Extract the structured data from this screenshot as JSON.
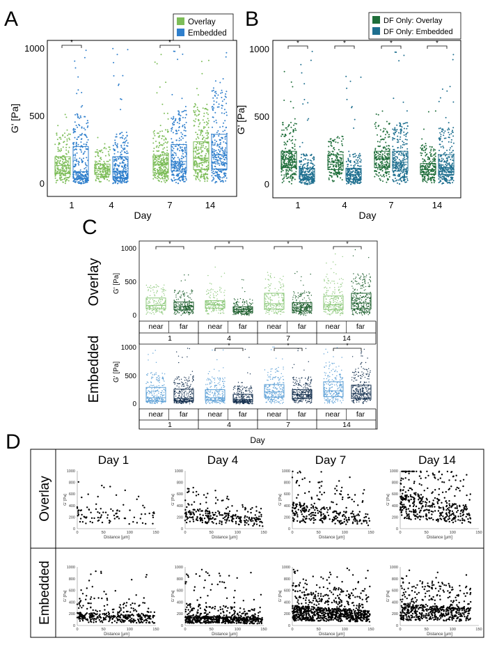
{
  "panel_letters": {
    "a": "A",
    "b": "B",
    "c": "C",
    "d": "D"
  },
  "colors": {
    "overlay": "#7dbd59",
    "embedded": "#2f7fcc",
    "df_overlay": "#1f6e3a",
    "df_embedded": "#1e6f8f",
    "c_near_overlay": "#8cc87a",
    "c_far_overlay": "#1a5c2a",
    "c_near_embedded": "#5b9fd6",
    "c_far_embedded": "#15304f",
    "scatter_dot": "#000000"
  },
  "chart_data": [
    {
      "id": "A",
      "type": "scatter",
      "title": "",
      "xlabel": "Day",
      "ylabel": "G' [Pa]",
      "ylim": [
        0,
        1000
      ],
      "yticks": [
        "0",
        "500",
        "1000"
      ],
      "categories": [
        "1",
        "4",
        "7",
        "14"
      ],
      "legend": [
        {
          "name": "Overlay",
          "color_key": "overlay"
        },
        {
          "name": "Embedded",
          "color_key": "embedded"
        }
      ],
      "legend_position": "top-right",
      "series": [
        {
          "name": "Overlay",
          "color_key": "overlay",
          "boxes": [
            {
              "q1": 75,
              "median": 135,
              "q3": 200,
              "max": 600
            },
            {
              "q1": 70,
              "median": 110,
              "q3": 145,
              "max": 380
            },
            {
              "q1": 80,
              "median": 145,
              "q3": 210,
              "max": 1000
            },
            {
              "q1": 105,
              "median": 190,
              "q3": 310,
              "max": 1000
            }
          ]
        },
        {
          "name": "Embedded",
          "color_key": "embedded",
          "boxes": [
            {
              "q1": 40,
              "median": 90,
              "q3": 275,
              "max": 1000
            },
            {
              "q1": 45,
              "median": 95,
              "q3": 200,
              "max": 1000
            },
            {
              "q1": 95,
              "median": 165,
              "q3": 290,
              "max": 1000
            },
            {
              "q1": 110,
              "median": 215,
              "q3": 365,
              "max": 1000
            }
          ]
        }
      ],
      "significance": [
        {
          "category_index": 0,
          "label": "*"
        },
        {
          "category_index": 2,
          "label": "*"
        }
      ]
    },
    {
      "id": "B",
      "type": "scatter",
      "title": "",
      "xlabel": "Day",
      "ylabel": "G' [Pa]",
      "ylim": [
        0,
        1000
      ],
      "yticks": [
        "0",
        "500",
        "1000"
      ],
      "categories": [
        "1",
        "4",
        "7",
        "14"
      ],
      "legend": [
        {
          "name": "DF Only: Overlay",
          "color_key": "df_overlay"
        },
        {
          "name": "DF Only: Embedded",
          "color_key": "df_embedded"
        }
      ],
      "legend_position": "top-right",
      "series": [
        {
          "name": "DF Only: Overlay",
          "color_key": "df_overlay",
          "boxes": [
            {
              "q1": 125,
              "median": 185,
              "q3": 245,
              "max": 900
            },
            {
              "q1": 110,
              "median": 165,
              "q3": 220,
              "max": 360
            },
            {
              "q1": 125,
              "median": 190,
              "q3": 245,
              "max": 560
            },
            {
              "q1": 75,
              "median": 110,
              "q3": 155,
              "max": 600
            }
          ]
        },
        {
          "name": "DF Only: Embedded",
          "color_key": "df_embedded",
          "boxes": [
            {
              "q1": 40,
              "median": 75,
              "q3": 120,
              "max": 1000
            },
            {
              "q1": 40,
              "median": 75,
              "q3": 120,
              "max": 800
            },
            {
              "q1": 100,
              "median": 165,
              "q3": 245,
              "max": 1000
            },
            {
              "q1": 75,
              "median": 125,
              "q3": 220,
              "max": 1000
            }
          ]
        }
      ],
      "significance": [
        {
          "category_index": 0,
          "label": "*"
        },
        {
          "category_index": 1,
          "label": "*"
        },
        {
          "category_index": 2,
          "label": "*"
        },
        {
          "category_index": 3,
          "label": "*"
        }
      ]
    },
    {
      "id": "C",
      "type": "scatter",
      "xlabel": "Day",
      "ylabel": "G' [Pa]",
      "ylim": [
        0,
        1000
      ],
      "yticks": [
        "0",
        "500",
        "1000"
      ],
      "days": [
        "1",
        "4",
        "7",
        "14"
      ],
      "sublabels": [
        "near",
        "far"
      ],
      "rows": [
        {
          "name": "Overlay",
          "near_color_key": "c_near_overlay",
          "far_color_key": "c_far_overlay",
          "boxes": [
            {
              "near": {
                "q1": 100,
                "median": 150,
                "q3": 260,
                "max": 470
              },
              "far": {
                "q1": 85,
                "median": 135,
                "q3": 200,
                "max": 620
              }
            },
            {
              "near": {
                "q1": 110,
                "median": 160,
                "q3": 220,
                "max": 750
              },
              "far": {
                "q1": 55,
                "median": 90,
                "q3": 130,
                "max": 600
              }
            },
            {
              "near": {
                "q1": 95,
                "median": 175,
                "q3": 330,
                "max": 650
              },
              "far": {
                "q1": 70,
                "median": 125,
                "q3": 190,
                "max": 680
              }
            },
            {
              "near": {
                "q1": 90,
                "median": 160,
                "q3": 290,
                "max": 990
              },
              "far": {
                "q1": 100,
                "median": 185,
                "q3": 330,
                "max": 990
              }
            }
          ],
          "significance": [
            0,
            1,
            2,
            3
          ]
        },
        {
          "name": "Embedded",
          "near_color_key": "c_near_embedded",
          "far_color_key": "c_far_embedded",
          "boxes": [
            {
              "near": {
                "q1": 50,
                "median": 110,
                "q3": 290,
                "max": 950
              },
              "far": {
                "q1": 50,
                "median": 95,
                "q3": 260,
                "max": 980
              }
            },
            {
              "near": {
                "q1": 65,
                "median": 110,
                "q3": 250,
                "max": 950
              },
              "far": {
                "q1": 40,
                "median": 75,
                "q3": 170,
                "max": 1000
              }
            },
            {
              "near": {
                "q1": 120,
                "median": 210,
                "q3": 340,
                "max": 1000
              },
              "far": {
                "q1": 95,
                "median": 165,
                "q3": 250,
                "max": 1000
              }
            },
            {
              "near": {
                "q1": 130,
                "median": 230,
                "q3": 390,
                "max": 1000
              },
              "far": {
                "q1": 100,
                "median": 185,
                "q3": 330,
                "max": 1000
              }
            }
          ],
          "significance": [
            1,
            2,
            3
          ]
        }
      ]
    },
    {
      "id": "D",
      "type": "scatter",
      "row_labels": [
        "Overlay",
        "Embedded"
      ],
      "column_titles": [
        "Day 1",
        "Day 4",
        "Day 7",
        "Day 14"
      ],
      "xlabel": "Distance [µm]",
      "ylabel": "G' [Pa]",
      "xlim": [
        0,
        150
      ],
      "ylim": [
        0,
        1000
      ],
      "xticks": [
        "0",
        "50",
        "100",
        "150"
      ],
      "yticks": [
        "0",
        "200",
        "400",
        "600",
        "800",
        "1000"
      ],
      "point_counts": [
        [
          90,
          260,
          300,
          420
        ],
        [
          360,
          620,
          900,
          560
        ]
      ],
      "typical_levels": [
        [
          200,
          120,
          150,
          220
        ],
        [
          120,
          90,
          180,
          200
        ]
      ]
    }
  ]
}
